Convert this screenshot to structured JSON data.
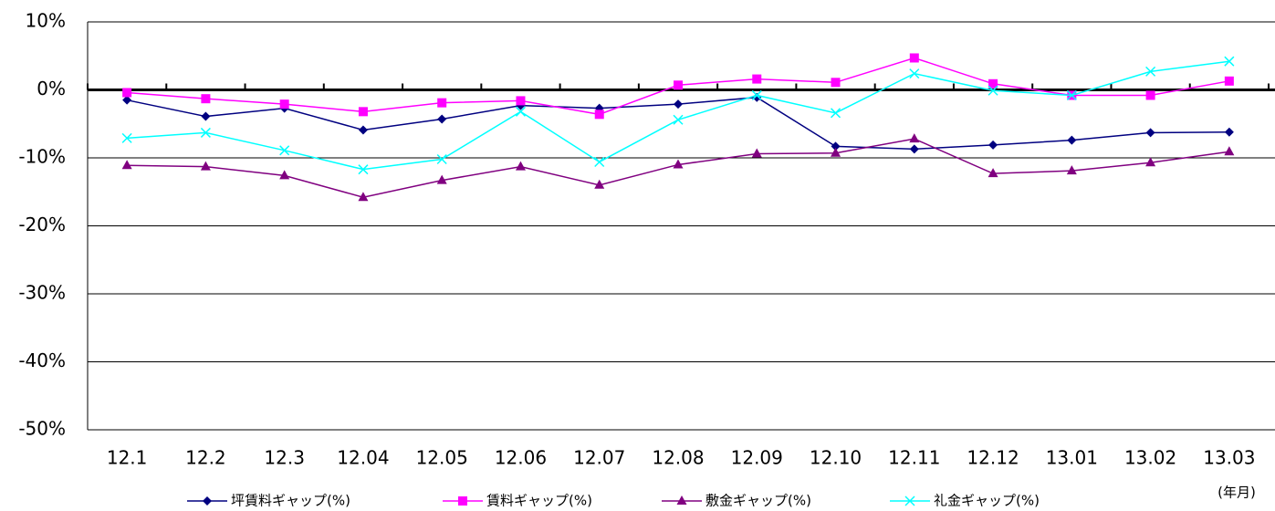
{
  "chart_data": {
    "type": "line",
    "categories": [
      "12.1",
      "12.2",
      "12.3",
      "12.04",
      "12.05",
      "12.06",
      "12.07",
      "12.08",
      "12.09",
      "12.10",
      "12.11",
      "12.12",
      "13.01",
      "13.02",
      "13.03"
    ],
    "x_unit_label": "(年月)",
    "ylim": [
      -50,
      10
    ],
    "yticks": [
      {
        "value": -50,
        "label": "-50%"
      },
      {
        "value": -40,
        "label": "-40%"
      },
      {
        "value": -30,
        "label": "-30%"
      },
      {
        "value": -20,
        "label": "-20%"
      },
      {
        "value": -10,
        "label": "-10%"
      },
      {
        "value": 0,
        "label": "0%"
      },
      {
        "value": 10,
        "label": "10%"
      }
    ],
    "grid": true,
    "legend": "bottom",
    "series": [
      {
        "name": "坪賃料ギャップ(%)",
        "color": "#000080",
        "marker": "diamond",
        "values": [
          -1.5,
          -3.9,
          -2.7,
          -5.9,
          -4.3,
          -2.3,
          -2.7,
          -2.1,
          -1.1,
          -8.3,
          -8.7,
          -8.1,
          -7.4,
          -6.3,
          -6.2
        ]
      },
      {
        "name": "賃料ギャップ(%)",
        "color": "#ff00ff",
        "marker": "square",
        "values": [
          -0.4,
          -1.3,
          -2.1,
          -3.2,
          -1.9,
          -1.6,
          -3.6,
          0.7,
          1.6,
          1.1,
          4.7,
          0.9,
          -0.8,
          -0.8,
          1.3
        ]
      },
      {
        "name": "敷金ギャップ(%)",
        "color": "#800080",
        "marker": "triangle",
        "values": [
          -11.1,
          -11.3,
          -12.6,
          -15.8,
          -13.3,
          -11.3,
          -14.0,
          -11.0,
          -9.4,
          -9.3,
          -7.2,
          -12.3,
          -11.9,
          -10.7,
          -9.1
        ]
      },
      {
        "name": "礼金ギャップ(%)",
        "color": "#00ffff",
        "marker": "x",
        "values": [
          -7.1,
          -6.3,
          -8.9,
          -11.7,
          -10.2,
          -3.2,
          -10.6,
          -4.4,
          -0.8,
          -3.4,
          2.4,
          -0.1,
          -0.8,
          2.7,
          4.2
        ]
      }
    ]
  }
}
